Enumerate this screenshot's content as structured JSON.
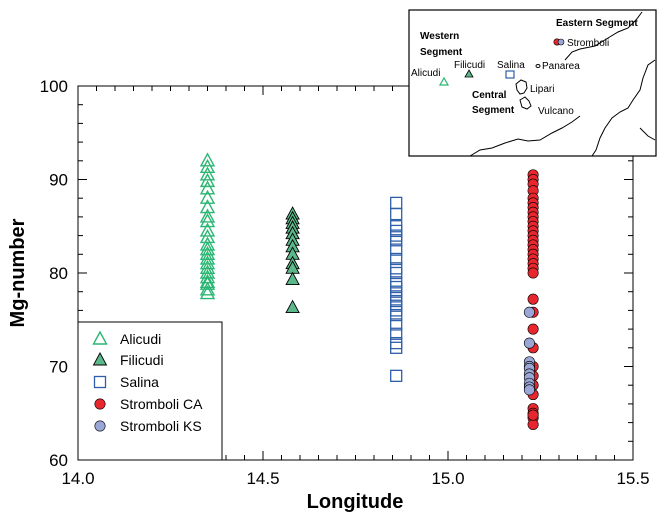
{
  "chart_data": {
    "type": "scatter",
    "xlabel": "Longitude",
    "ylabel": "Mg-number",
    "xlim": [
      14.0,
      15.5
    ],
    "ylim": [
      60,
      100
    ],
    "x_ticks": [
      "14.0",
      "14.5",
      "15.0",
      "15.5"
    ],
    "y_ticks": [
      "60",
      "70",
      "80",
      "90",
      "100"
    ],
    "legend_position": "bottom-left",
    "series": [
      {
        "name": "Alicudi",
        "marker": "triangle-open",
        "color": "#2bb673",
        "x": [
          14.35,
          14.35,
          14.35,
          14.35,
          14.35,
          14.35,
          14.35,
          14.35,
          14.35,
          14.35,
          14.35,
          14.35,
          14.35,
          14.35,
          14.35,
          14.35,
          14.35,
          14.35,
          14.35,
          14.35,
          14.35,
          14.35,
          14.35
        ],
        "y": [
          92.0,
          91.3,
          90.5,
          89.8,
          89.0,
          88.0,
          87.0,
          86.0,
          85.5,
          84.5,
          83.8,
          83.0,
          82.5,
          82.0,
          81.5,
          81.0,
          80.5,
          80.0,
          79.5,
          79.0,
          78.8,
          78.2,
          77.8
        ]
      },
      {
        "name": "Filicudi",
        "marker": "triangle-filled",
        "color": "#5cb88a",
        "x": [
          14.58,
          14.58,
          14.58,
          14.58,
          14.58,
          14.58,
          14.58,
          14.58,
          14.58,
          14.58,
          14.58,
          14.58
        ],
        "y": [
          86.3,
          85.8,
          85.3,
          84.8,
          84.2,
          83.5,
          82.8,
          82.0,
          81.0,
          80.5,
          79.3,
          76.3
        ]
      },
      {
        "name": "Salina",
        "marker": "square-open",
        "color": "#2f5fa9",
        "x": [
          14.86,
          14.86,
          14.86,
          14.86,
          14.86,
          14.86,
          14.86,
          14.86,
          14.86,
          14.86,
          14.86,
          14.86,
          14.86,
          14.86,
          14.86,
          14.86,
          14.86,
          14.86,
          14.86,
          14.86,
          14.86,
          14.86,
          14.86
        ],
        "y": [
          87.5,
          86.3,
          85.0,
          84.5,
          84.0,
          83.5,
          82.5,
          81.5,
          80.5,
          80.0,
          79.0,
          78.5,
          78.0,
          77.5,
          77.0,
          76.5,
          76.0,
          75.5,
          74.5,
          73.5,
          72.5,
          72.0,
          69.0
        ]
      },
      {
        "name": "Stromboli CA",
        "marker": "circle-filled",
        "color": "#e8262d",
        "x": [
          15.23,
          15.23,
          15.23,
          15.23,
          15.23,
          15.23,
          15.23,
          15.23,
          15.23,
          15.23,
          15.23,
          15.23,
          15.23,
          15.23,
          15.23,
          15.23,
          15.23,
          15.23,
          15.23,
          15.23,
          15.23,
          15.23,
          15.23,
          15.23,
          15.23,
          15.23,
          15.23,
          15.23,
          15.23,
          15.23,
          15.23,
          15.23,
          15.23,
          15.23
        ],
        "y": [
          90.5,
          90.0,
          89.5,
          88.8,
          88.0,
          87.5,
          87.0,
          86.5,
          86.0,
          85.5,
          85.0,
          84.5,
          84.0,
          83.5,
          83.0,
          82.5,
          82.0,
          81.5,
          81.0,
          80.5,
          80.0,
          77.2,
          75.8,
          74.0,
          72.0,
          70.0,
          69.0,
          68.0,
          67.0,
          65.5,
          65.0,
          64.5,
          63.8,
          64.8
        ]
      },
      {
        "name": "Stromboli KS",
        "marker": "circle-filled",
        "color": "#9aa7d6",
        "x": [
          15.22,
          15.22,
          15.22,
          15.22,
          15.22,
          15.22,
          15.22,
          15.22,
          15.22,
          15.22
        ],
        "y": [
          75.8,
          72.5,
          70.5,
          70.0,
          69.8,
          69.2,
          68.8,
          68.2,
          67.8,
          67.5
        ]
      }
    ]
  },
  "inset": {
    "western_segment": [
      "Western",
      "Segment"
    ],
    "central_segment": [
      "Central",
      "Segment"
    ],
    "eastern_segment": "Eastern Segment",
    "islands": [
      "Alicudi",
      "Filicudi",
      "Salina",
      "Panarea",
      "Lipari",
      "Vulcano",
      "Stromboli"
    ]
  }
}
